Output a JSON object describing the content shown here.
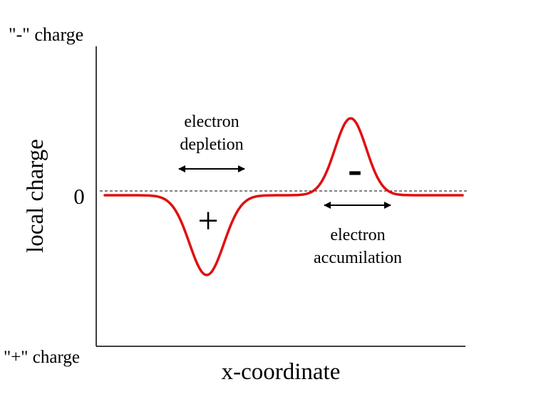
{
  "diagram": {
    "y_top_label": "\"-\" charge",
    "y_bottom_label": "\"+\" charge",
    "y_axis_label": "local charge",
    "x_axis_label": "x-coordinate",
    "zero_label": "0",
    "plus_sign": "+",
    "minus_sign": "-",
    "depletion_label": [
      "electron",
      "depletion"
    ],
    "accumulation_label": [
      "electron",
      "accumilation"
    ]
  },
  "colors": {
    "curve": "#e01010",
    "axes": "#000000",
    "zero_line": "#000000"
  }
}
